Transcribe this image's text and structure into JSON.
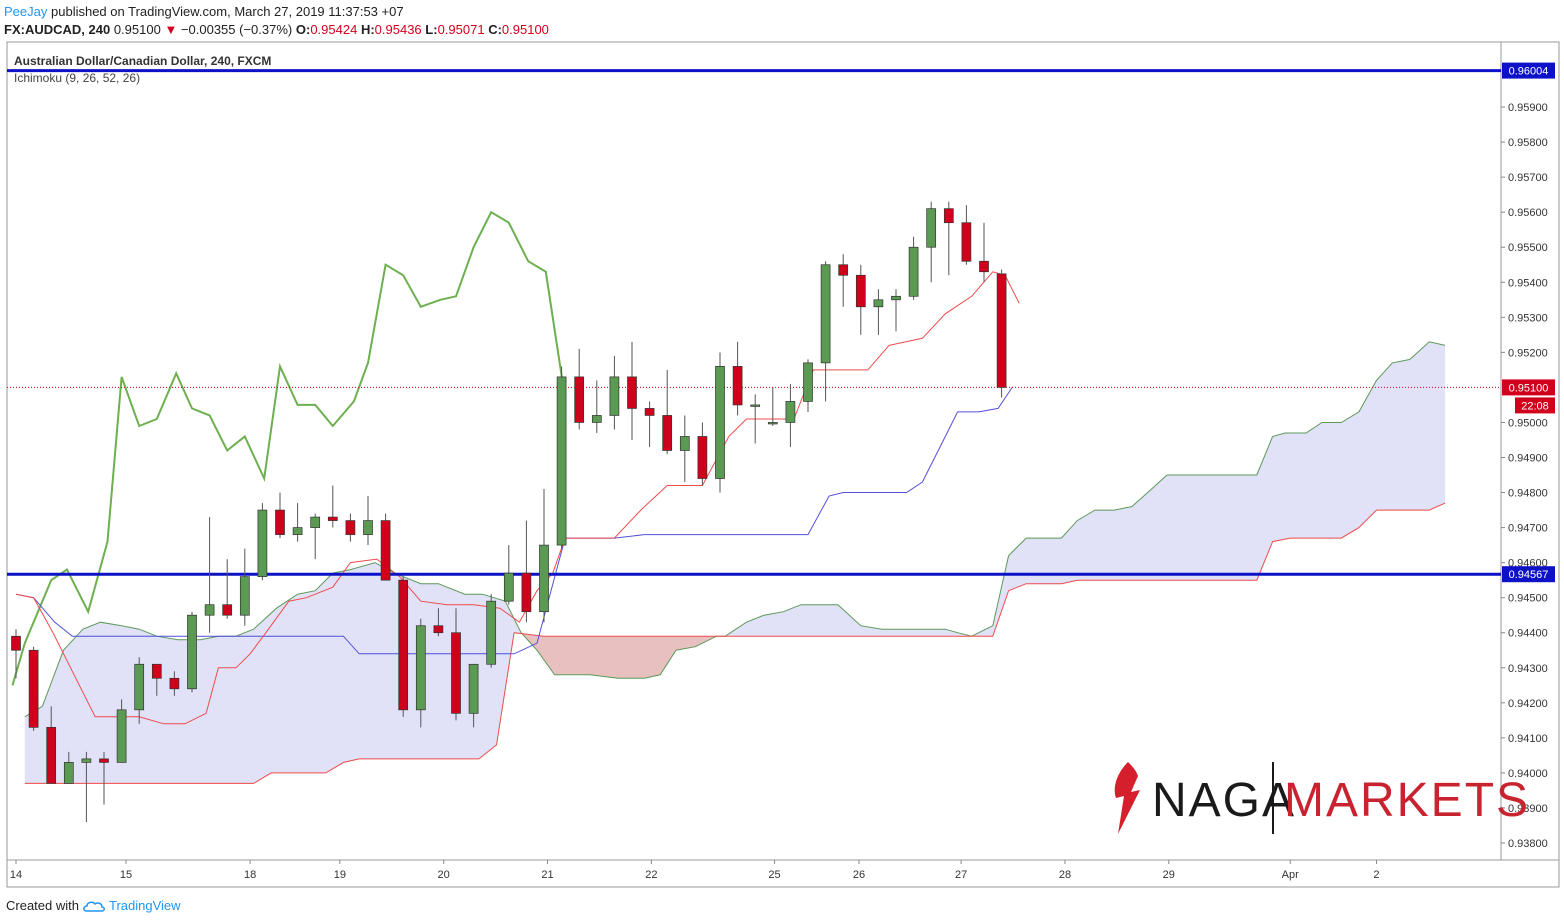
{
  "header": {
    "author": "PeeJay",
    "published_text": "published on TradingView.com, March 27, 2019 11:37:53 +07",
    "symbol_line": {
      "symbol": "FX:AUDCAD, 240",
      "last": "0.95100",
      "change": "−0.00355 (−0.37%)",
      "o_label": "O:",
      "o": "0.95424",
      "h_label": "H:",
      "h": "0.95436",
      "l_label": "L:",
      "l": "0.95071",
      "c_label": "C:",
      "c": "0.95100"
    }
  },
  "legend": {
    "title": "Australian Dollar/Canadian Dollar, 240, FXCM",
    "indicator": "Ichimoku (9, 26, 52, 26)"
  },
  "footer": {
    "created_with": "Created with",
    "brand": "TradingView"
  },
  "logo": {
    "left": "NAGA",
    "right": "MARKETS"
  },
  "colors": {
    "up": "#5b9a53",
    "down": "#d0021b",
    "hline": "#0d12c8",
    "tenkan": "#ef4b4b",
    "kijun": "#5151d9",
    "chikou": "#6db04f",
    "cloud_bull": "#dcdcf7",
    "cloud_bear": "#e3b5b4",
    "tag_red": "#d0021b",
    "tag_blue": "#0d12c8"
  },
  "chart_data": {
    "type": "candlestick",
    "title": "Australian Dollar/Canadian Dollar, 240, FXCM",
    "ylim": [
      0.9375,
      0.9605
    ],
    "y_ticks": [
      "0.95900",
      "0.95800",
      "0.95700",
      "0.95600",
      "0.95500",
      "0.95400",
      "0.95300",
      "0.95200",
      "0.95000",
      "0.94900",
      "0.94800",
      "0.94700",
      "0.94600",
      "0.94500",
      "0.94400",
      "0.94300",
      "0.94200",
      "0.94100",
      "0.94000",
      "0.93900",
      "0.93800"
    ],
    "x_ticks": [
      {
        "label": "14",
        "i": 0
      },
      {
        "label": "15",
        "i": 6.25
      },
      {
        "label": "18",
        "i": 13.3
      },
      {
        "label": "19",
        "i": 18.4
      },
      {
        "label": "20",
        "i": 24.3
      },
      {
        "label": "21",
        "i": 30.2
      },
      {
        "label": "22",
        "i": 36.1
      },
      {
        "label": "25",
        "i": 43.1
      },
      {
        "label": "26",
        "i": 47.9
      },
      {
        "label": "27",
        "i": 53.7
      },
      {
        "label": "28",
        "i": 59.6
      },
      {
        "label": "29",
        "i": 65.5
      },
      {
        "label": "Apr",
        "i": 72.4
      },
      {
        "label": "2",
        "i": 77.3
      }
    ],
    "horizontal_lines": [
      {
        "value": 0.96004,
        "label": "0.96004"
      },
      {
        "value": 0.94567,
        "label": "0.94567"
      }
    ],
    "last_price": {
      "value": 0.951,
      "label": "0.95100",
      "countdown": "22:08"
    },
    "candles": [
      [
        0.9439,
        0.9441,
        0.9427,
        0.9435
      ],
      [
        0.9435,
        0.9436,
        0.9412,
        0.9413
      ],
      [
        0.9413,
        0.9419,
        0.9397,
        0.9397
      ],
      [
        0.9397,
        0.9406,
        0.9397,
        0.9403
      ],
      [
        0.9403,
        0.9406,
        0.9386,
        0.9404
      ],
      [
        0.9404,
        0.9406,
        0.9391,
        0.9403
      ],
      [
        0.9403,
        0.9421,
        0.9403,
        0.9418
      ],
      [
        0.9418,
        0.9433,
        0.9414,
        0.9431
      ],
      [
        0.9431,
        0.9431,
        0.9422,
        0.9427
      ],
      [
        0.9427,
        0.9429,
        0.9422,
        0.9424
      ],
      [
        0.9424,
        0.9446,
        0.9423,
        0.9445
      ],
      [
        0.9445,
        0.9473,
        0.944,
        0.9448
      ],
      [
        0.9448,
        0.9461,
        0.9444,
        0.9445
      ],
      [
        0.9445,
        0.9464,
        0.9442,
        0.9456
      ],
      [
        0.9456,
        0.9477,
        0.9455,
        0.9475
      ],
      [
        0.9475,
        0.948,
        0.9467,
        0.9468
      ],
      [
        0.9468,
        0.9477,
        0.9466,
        0.947
      ],
      [
        0.947,
        0.9474,
        0.9461,
        0.9473
      ],
      [
        0.9473,
        0.9482,
        0.947,
        0.9472
      ],
      [
        0.9472,
        0.9474,
        0.9466,
        0.9468
      ],
      [
        0.9468,
        0.9479,
        0.9465,
        0.9472
      ],
      [
        0.9472,
        0.9474,
        0.9455,
        0.9455
      ],
      [
        0.9455,
        0.9456,
        0.9416,
        0.9418
      ],
      [
        0.9418,
        0.9444,
        0.9413,
        0.9442
      ],
      [
        0.9442,
        0.9447,
        0.9439,
        0.944
      ],
      [
        0.944,
        0.9447,
        0.9415,
        0.9417
      ],
      [
        0.9417,
        0.9431,
        0.9413,
        0.9431
      ],
      [
        0.9431,
        0.9451,
        0.943,
        0.9449
      ],
      [
        0.9449,
        0.9465,
        0.9448,
        0.9457
      ],
      [
        0.9457,
        0.9472,
        0.9443,
        0.9446
      ],
      [
        0.9446,
        0.9481,
        0.9443,
        0.9465
      ],
      [
        0.9465,
        0.9516,
        0.9464,
        0.9513
      ],
      [
        0.9513,
        0.9521,
        0.9498,
        0.95
      ],
      [
        0.95,
        0.9512,
        0.9497,
        0.9502
      ],
      [
        0.9502,
        0.9519,
        0.9498,
        0.9513
      ],
      [
        0.9513,
        0.9523,
        0.9495,
        0.9504
      ],
      [
        0.9504,
        0.9506,
        0.9493,
        0.9502
      ],
      [
        0.9502,
        0.9515,
        0.9491,
        0.9492
      ],
      [
        0.9492,
        0.9502,
        0.9483,
        0.9496
      ],
      [
        0.9496,
        0.95,
        0.9482,
        0.9484
      ],
      [
        0.9484,
        0.952,
        0.948,
        0.9516
      ],
      [
        0.9516,
        0.9523,
        0.9502,
        0.9505
      ],
      [
        0.9505,
        0.9508,
        0.9494,
        0.9505
      ],
      [
        0.95,
        0.951,
        0.9499,
        0.95
      ],
      [
        0.95,
        0.9511,
        0.9493,
        0.9506
      ],
      [
        0.9506,
        0.9518,
        0.9503,
        0.9517
      ],
      [
        0.9517,
        0.9546,
        0.9506,
        0.9545
      ],
      [
        0.9545,
        0.9548,
        0.9533,
        0.9542
      ],
      [
        0.9542,
        0.9545,
        0.9525,
        0.9533
      ],
      [
        0.9533,
        0.9538,
        0.9525,
        0.9535
      ],
      [
        0.9535,
        0.9538,
        0.9526,
        0.9536
      ],
      [
        0.9536,
        0.9553,
        0.9535,
        0.955
      ],
      [
        0.955,
        0.9563,
        0.954,
        0.9561
      ],
      [
        0.9561,
        0.9563,
        0.9542,
        0.9557
      ],
      [
        0.9557,
        0.9562,
        0.9545,
        0.9546
      ],
      [
        0.9546,
        0.9557,
        0.954,
        0.9543
      ],
      [
        0.95424,
        0.95436,
        0.95071,
        0.951
      ]
    ],
    "tenkan": [
      [
        0,
        0.9451
      ],
      [
        1,
        0.945
      ],
      [
        2.1,
        0.944
      ],
      [
        3.2,
        0.9429
      ],
      [
        4.5,
        0.9416
      ],
      [
        6,
        0.9416
      ],
      [
        7,
        0.9416
      ],
      [
        8.4,
        0.9414
      ],
      [
        9.6,
        0.9414
      ],
      [
        10.8,
        0.9417
      ],
      [
        11.5,
        0.943
      ],
      [
        12.5,
        0.943
      ],
      [
        13.3,
        0.9434
      ],
      [
        14.2,
        0.944
      ],
      [
        15.5,
        0.9449
      ],
      [
        16.5,
        0.945
      ],
      [
        18,
        0.9453
      ],
      [
        19,
        0.946
      ],
      [
        20.5,
        0.9461
      ],
      [
        21.8,
        0.9456
      ],
      [
        23,
        0.9449
      ],
      [
        24.5,
        0.9448
      ],
      [
        26,
        0.9448
      ],
      [
        27.5,
        0.9447
      ],
      [
        28.6,
        0.9443
      ],
      [
        29.6,
        0.9452
      ],
      [
        30.5,
        0.9457
      ],
      [
        31.2,
        0.9467
      ],
      [
        32.3,
        0.9467
      ],
      [
        34,
        0.9467
      ],
      [
        35.5,
        0.9475
      ],
      [
        37,
        0.9482
      ],
      [
        39,
        0.9482
      ],
      [
        40.5,
        0.9496
      ],
      [
        41.5,
        0.9501
      ],
      [
        44.2,
        0.9501
      ],
      [
        45.3,
        0.9515
      ],
      [
        46.2,
        0.9515
      ],
      [
        48.4,
        0.9515
      ],
      [
        49.6,
        0.9522
      ],
      [
        51.5,
        0.9524
      ],
      [
        52.8,
        0.9531
      ],
      [
        54.3,
        0.9536
      ],
      [
        55.5,
        0.9543
      ],
      [
        56.2,
        0.9542
      ],
      [
        57,
        0.9534
      ]
    ],
    "kijun": [
      [
        0,
        0.9451
      ],
      [
        1,
        0.945
      ],
      [
        2.2,
        0.9443
      ],
      [
        3.2,
        0.9439
      ],
      [
        4.5,
        0.9439
      ],
      [
        8.5,
        0.9439
      ],
      [
        9.6,
        0.9439
      ],
      [
        15.6,
        0.9439
      ],
      [
        18.6,
        0.9439
      ],
      [
        19.5,
        0.9434
      ],
      [
        21,
        0.9434
      ],
      [
        26.5,
        0.9434
      ],
      [
        28.3,
        0.9434
      ],
      [
        29.6,
        0.9437
      ],
      [
        31.2,
        0.9467
      ],
      [
        32.5,
        0.9467
      ],
      [
        34,
        0.9467
      ],
      [
        35.7,
        0.9468
      ],
      [
        45,
        0.9468
      ],
      [
        46.2,
        0.9479
      ],
      [
        47,
        0.948
      ],
      [
        50.6,
        0.948
      ],
      [
        51.5,
        0.9483
      ],
      [
        52.8,
        0.9496
      ],
      [
        53.5,
        0.9503
      ],
      [
        54.7,
        0.9503
      ],
      [
        55.8,
        0.9504
      ],
      [
        56.6,
        0.951
      ]
    ],
    "chikou": [
      [
        -0.2,
        0.9425
      ],
      [
        0.5,
        0.9437
      ],
      [
        2,
        0.9455
      ],
      [
        2.9,
        0.9458
      ],
      [
        4.1,
        0.9446
      ],
      [
        5.2,
        0.9466
      ],
      [
        6,
        0.9513
      ],
      [
        7,
        0.9499
      ],
      [
        8,
        0.9501
      ],
      [
        9.1,
        0.9514
      ],
      [
        10,
        0.9504
      ],
      [
        11,
        0.9502
      ],
      [
        12,
        0.9492
      ],
      [
        13,
        0.9496
      ],
      [
        14.1,
        0.9484
      ],
      [
        15,
        0.9516
      ],
      [
        16,
        0.9505
      ],
      [
        17,
        0.9505
      ],
      [
        18,
        0.9499
      ],
      [
        19.2,
        0.9506
      ],
      [
        20,
        0.9517
      ],
      [
        21,
        0.9545
      ],
      [
        22,
        0.9542
      ],
      [
        23,
        0.9533
      ],
      [
        24.1,
        0.9535
      ],
      [
        25,
        0.9536
      ],
      [
        26,
        0.955
      ],
      [
        27,
        0.956
      ],
      [
        28,
        0.9557
      ],
      [
        29.1,
        0.9546
      ],
      [
        30.1,
        0.9543
      ],
      [
        31.1,
        0.951
      ]
    ],
    "span_a": [
      [
        0.5,
        0.9416
      ],
      [
        1.5,
        0.9419
      ],
      [
        2.7,
        0.9435
      ],
      [
        3.8,
        0.9441
      ],
      [
        4.8,
        0.9443
      ],
      [
        6,
        0.9442
      ],
      [
        7,
        0.9441
      ],
      [
        8,
        0.9439
      ],
      [
        9.2,
        0.9438
      ],
      [
        10.5,
        0.9438
      ],
      [
        11.5,
        0.9439
      ],
      [
        12.5,
        0.9439
      ],
      [
        13.5,
        0.9441
      ],
      [
        14.8,
        0.9447
      ],
      [
        16,
        0.9451
      ],
      [
        17,
        0.9452
      ],
      [
        18,
        0.9457
      ],
      [
        19,
        0.9458
      ],
      [
        20.4,
        0.946
      ],
      [
        21.5,
        0.9457
      ],
      [
        23,
        0.9454
      ],
      [
        24,
        0.9454
      ],
      [
        25.5,
        0.9451
      ],
      [
        26.5,
        0.9451
      ],
      [
        27.8,
        0.9449
      ],
      [
        28.7,
        0.944
      ],
      [
        29.6,
        0.9435
      ],
      [
        30.6,
        0.9428
      ],
      [
        31.6,
        0.9428
      ],
      [
        32.6,
        0.9428
      ],
      [
        34.2,
        0.9427
      ],
      [
        35.7,
        0.9427
      ],
      [
        36.6,
        0.9428
      ],
      [
        37.5,
        0.9435
      ],
      [
        38.6,
        0.9436
      ],
      [
        39.8,
        0.9439
      ],
      [
        40.3,
        0.9439
      ],
      [
        41.5,
        0.9443
      ],
      [
        42.5,
        0.9445
      ],
      [
        43.6,
        0.9446
      ],
      [
        44.6,
        0.9448
      ],
      [
        45.7,
        0.9448
      ],
      [
        46.7,
        0.9448
      ],
      [
        48,
        0.9442
      ],
      [
        49.2,
        0.9441
      ],
      [
        50.6,
        0.9441
      ],
      [
        51.8,
        0.9441
      ],
      [
        52.8,
        0.9441
      ],
      [
        53.5,
        0.944
      ],
      [
        54.3,
        0.9439
      ],
      [
        55.5,
        0.9442
      ],
      [
        56.4,
        0.9462
      ],
      [
        57.4,
        0.9467
      ],
      [
        58.4,
        0.9467
      ],
      [
        59.4,
        0.9467
      ],
      [
        60.3,
        0.9472
      ],
      [
        61.3,
        0.9475
      ],
      [
        62.4,
        0.9475
      ],
      [
        63.4,
        0.9476
      ],
      [
        64.3,
        0.948
      ],
      [
        65.4,
        0.9485
      ],
      [
        66.3,
        0.9485
      ],
      [
        70.5,
        0.9485
      ],
      [
        71.4,
        0.9496
      ],
      [
        72.1,
        0.9497
      ],
      [
        73.3,
        0.9497
      ],
      [
        74.2,
        0.95
      ],
      [
        75.3,
        0.95
      ],
      [
        76.3,
        0.9503
      ],
      [
        77.3,
        0.9512
      ],
      [
        78.2,
        0.9517
      ],
      [
        79.2,
        0.9518
      ],
      [
        80.3,
        0.9523
      ],
      [
        81.2,
        0.9522
      ]
    ],
    "span_b": [
      [
        0.5,
        0.9397
      ],
      [
        3,
        0.9397
      ],
      [
        6,
        0.9397
      ],
      [
        8.5,
        0.9397
      ],
      [
        11,
        0.9397
      ],
      [
        13.5,
        0.9397
      ],
      [
        14.5,
        0.94
      ],
      [
        17.6,
        0.94
      ],
      [
        18.6,
        0.9403
      ],
      [
        19.5,
        0.9404
      ],
      [
        22,
        0.9404
      ],
      [
        25,
        0.9404
      ],
      [
        26.3,
        0.9404
      ],
      [
        27.3,
        0.9408
      ],
      [
        28.3,
        0.944
      ],
      [
        30,
        0.9439
      ],
      [
        31.5,
        0.9439
      ],
      [
        33,
        0.9439
      ],
      [
        35,
        0.9439
      ],
      [
        37,
        0.9439
      ],
      [
        39,
        0.9439
      ],
      [
        41,
        0.9439
      ],
      [
        43,
        0.9439
      ],
      [
        45,
        0.9439
      ],
      [
        47,
        0.9439
      ],
      [
        49,
        0.9439
      ],
      [
        51,
        0.9439
      ],
      [
        53,
        0.9439
      ],
      [
        54.5,
        0.9439
      ],
      [
        55.5,
        0.9439
      ],
      [
        56.4,
        0.9452
      ],
      [
        57.4,
        0.9454
      ],
      [
        58.4,
        0.9454
      ],
      [
        59.4,
        0.9454
      ],
      [
        60.3,
        0.9455
      ],
      [
        63,
        0.9455
      ],
      [
        66,
        0.9455
      ],
      [
        70.5,
        0.9455
      ],
      [
        71.4,
        0.9466
      ],
      [
        72.4,
        0.9467
      ],
      [
        73.6,
        0.9467
      ],
      [
        75.3,
        0.9467
      ],
      [
        76.3,
        0.947
      ],
      [
        77.3,
        0.9475
      ],
      [
        79.2,
        0.9475
      ],
      [
        80.3,
        0.9475
      ],
      [
        81.2,
        0.9477
      ]
    ]
  }
}
